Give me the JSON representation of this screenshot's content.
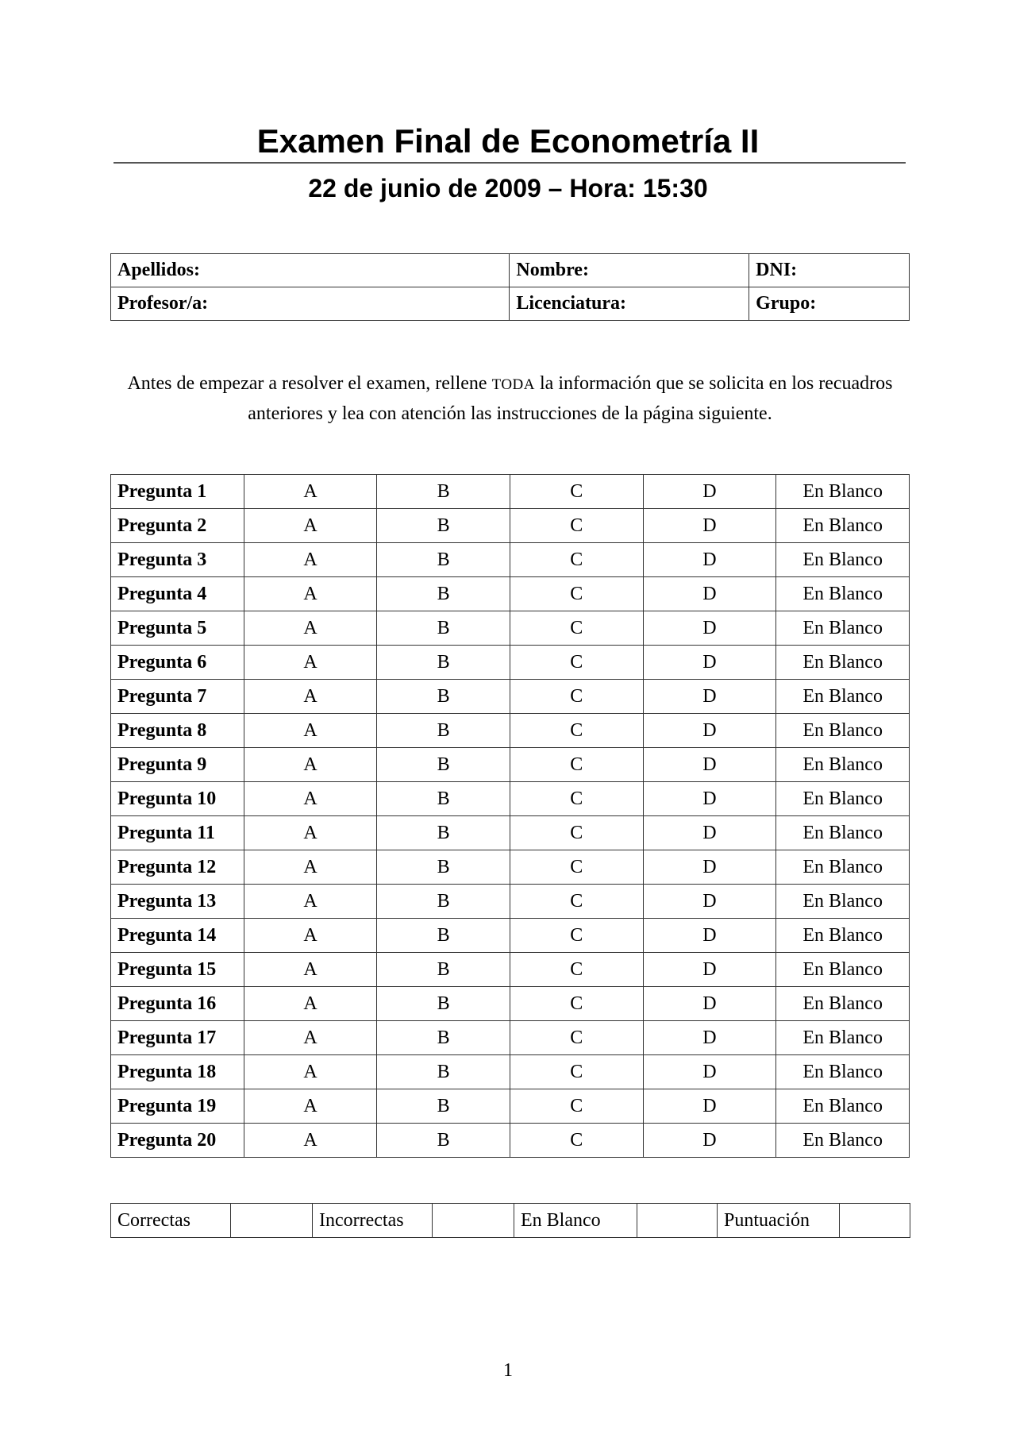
{
  "header": {
    "title": "Examen Final de Econometría II",
    "subtitle": "22 de junio de 2009 – Hora: 15:30"
  },
  "info_table": {
    "rows": [
      [
        "Apellidos:",
        "Nombre:",
        "DNI:"
      ],
      [
        "Profesor/a:",
        "Licenciatura:",
        "Grupo:"
      ]
    ]
  },
  "instructions": {
    "part1": "Antes de empezar a resolver el examen, rellene ",
    "emph": "TODA",
    "part2": " la información que se solicita en los recuadros anteriores y lea con atención las instrucciones de la página siguiente."
  },
  "answers": {
    "options": [
      "A",
      "B",
      "C",
      "D",
      "En Blanco"
    ],
    "questions": [
      "Pregunta 1",
      "Pregunta 2",
      "Pregunta 3",
      "Pregunta 4",
      "Pregunta 5",
      "Pregunta 6",
      "Pregunta 7",
      "Pregunta 8",
      "Pregunta 9",
      "Pregunta 10",
      "Pregunta 11",
      "Pregunta 12",
      "Pregunta 13",
      "Pregunta 14",
      "Pregunta 15",
      "Pregunta 16",
      "Pregunta 17",
      "Pregunta 18",
      "Pregunta 19",
      "Pregunta 20"
    ]
  },
  "score": {
    "labels": [
      "Correctas",
      "Incorrectas",
      "En Blanco",
      "Puntuación"
    ]
  },
  "footer": {
    "page_number": "1"
  }
}
